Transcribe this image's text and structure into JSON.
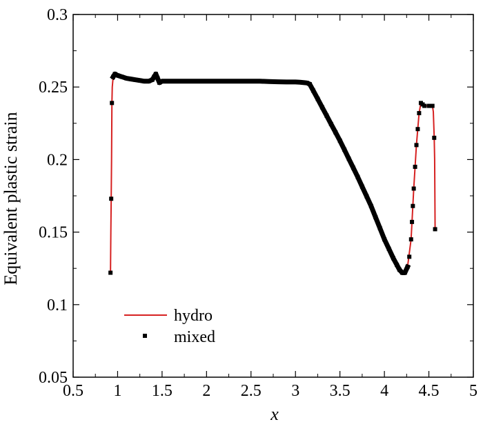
{
  "chart_data": {
    "type": "line",
    "title": "",
    "xlabel": "x",
    "ylabel": "Equivalent plastic strain",
    "xlim": [
      0.5,
      5
    ],
    "ylim": [
      0.05,
      0.3
    ],
    "x_ticks": [
      0.5,
      1,
      1.5,
      2,
      2.5,
      3,
      3.5,
      4,
      4.5,
      5
    ],
    "x_tick_labels": [
      "0.5",
      "1",
      "1.5",
      "2",
      "2.5",
      "3",
      "3.5",
      "4",
      "4.5",
      "5"
    ],
    "y_ticks": [
      0.05,
      0.1,
      0.15,
      0.2,
      0.25,
      0.3
    ],
    "y_tick_labels": [
      "0.05",
      "0.1",
      "0.15",
      "0.2",
      "0.25",
      "0.3"
    ],
    "grid": false,
    "legend": "bottom-left",
    "series": [
      {
        "name": "hydro",
        "style": "line",
        "color": "#d62020",
        "points": [
          [
            0.92,
            0.122
          ],
          [
            0.924,
            0.15
          ],
          [
            0.928,
            0.173
          ],
          [
            0.932,
            0.2
          ],
          [
            0.936,
            0.239
          ],
          [
            0.94,
            0.25
          ],
          [
            0.95,
            0.257
          ],
          [
            0.96,
            0.259
          ],
          [
            1.0,
            0.258
          ],
          [
            1.1,
            0.256
          ],
          [
            1.2,
            0.255
          ],
          [
            1.3,
            0.254
          ],
          [
            1.38,
            0.254
          ],
          [
            1.41,
            0.257
          ],
          [
            1.43,
            0.259
          ],
          [
            1.45,
            0.256
          ],
          [
            1.47,
            0.253
          ],
          [
            1.5,
            0.254
          ],
          [
            2.0,
            0.254
          ],
          [
            2.5,
            0.254
          ],
          [
            3.0,
            0.2535
          ],
          [
            3.1,
            0.253
          ],
          [
            3.16,
            0.252
          ],
          [
            3.3,
            0.236
          ],
          [
            3.5,
            0.213
          ],
          [
            3.7,
            0.188
          ],
          [
            3.85,
            0.168
          ],
          [
            4.0,
            0.145
          ],
          [
            4.1,
            0.132
          ],
          [
            4.17,
            0.124
          ],
          [
            4.2,
            0.122
          ],
          [
            4.23,
            0.122
          ],
          [
            4.26,
            0.126
          ],
          [
            4.3,
            0.145
          ],
          [
            4.33,
            0.18
          ],
          [
            4.36,
            0.21
          ],
          [
            4.39,
            0.232
          ],
          [
            4.41,
            0.239
          ],
          [
            4.45,
            0.237
          ],
          [
            4.5,
            0.237
          ],
          [
            4.54,
            0.237
          ],
          [
            4.55,
            0.233
          ],
          [
            4.56,
            0.215
          ],
          [
            4.565,
            0.2
          ],
          [
            4.57,
            0.152
          ]
        ]
      },
      {
        "name": "mixed",
        "style": "markers",
        "color": "#000000",
        "points": [
          [
            0.92,
            0.122
          ],
          [
            0.928,
            0.173
          ],
          [
            0.936,
            0.239
          ],
          [
            0.95,
            0.257
          ],
          [
            0.97,
            0.259
          ],
          [
            1.0,
            0.258
          ],
          [
            1.05,
            0.257
          ],
          [
            1.1,
            0.256
          ],
          [
            1.15,
            0.2555
          ],
          [
            1.2,
            0.255
          ],
          [
            1.25,
            0.2545
          ],
          [
            1.3,
            0.254
          ],
          [
            1.35,
            0.254
          ],
          [
            1.39,
            0.255
          ],
          [
            1.41,
            0.257
          ],
          [
            1.43,
            0.259
          ],
          [
            1.45,
            0.256
          ],
          [
            1.47,
            0.253
          ],
          [
            1.5,
            0.254
          ],
          [
            1.6,
            0.254
          ],
          [
            1.7,
            0.254
          ],
          [
            1.8,
            0.254
          ],
          [
            1.9,
            0.254
          ],
          [
            2.0,
            0.254
          ],
          [
            2.1,
            0.254
          ],
          [
            2.2,
            0.254
          ],
          [
            2.3,
            0.254
          ],
          [
            2.4,
            0.254
          ],
          [
            2.5,
            0.254
          ],
          [
            2.6,
            0.254
          ],
          [
            2.7,
            0.2538
          ],
          [
            2.8,
            0.2536
          ],
          [
            2.9,
            0.2535
          ],
          [
            3.0,
            0.2535
          ],
          [
            3.05,
            0.2533
          ],
          [
            3.1,
            0.253
          ],
          [
            3.13,
            0.2528
          ],
          [
            3.16,
            0.252
          ],
          [
            3.2,
            0.2475
          ],
          [
            3.25,
            0.2418
          ],
          [
            3.3,
            0.236
          ],
          [
            3.35,
            0.2303
          ],
          [
            3.4,
            0.2245
          ],
          [
            3.45,
            0.2188
          ],
          [
            3.5,
            0.213
          ],
          [
            3.55,
            0.2068
          ],
          [
            3.6,
            0.2005
          ],
          [
            3.65,
            0.1943
          ],
          [
            3.7,
            0.188
          ],
          [
            3.75,
            0.1813
          ],
          [
            3.8,
            0.1747
          ],
          [
            3.85,
            0.168
          ],
          [
            3.9,
            0.1603
          ],
          [
            3.95,
            0.1527
          ],
          [
            4.0,
            0.145
          ],
          [
            4.05,
            0.1385
          ],
          [
            4.1,
            0.132
          ],
          [
            4.14,
            0.1274
          ],
          [
            4.17,
            0.124
          ],
          [
            4.2,
            0.122
          ],
          [
            4.23,
            0.122
          ],
          [
            4.26,
            0.126
          ],
          [
            4.28,
            0.133
          ],
          [
            4.3,
            0.145
          ],
          [
            4.31,
            0.157
          ],
          [
            4.32,
            0.168
          ],
          [
            4.33,
            0.18
          ],
          [
            4.345,
            0.195
          ],
          [
            4.36,
            0.21
          ],
          [
            4.375,
            0.221
          ],
          [
            4.39,
            0.232
          ],
          [
            4.41,
            0.239
          ],
          [
            4.43,
            0.238
          ],
          [
            4.45,
            0.237
          ],
          [
            4.5,
            0.237
          ],
          [
            4.54,
            0.237
          ],
          [
            4.56,
            0.215
          ],
          [
            4.57,
            0.152
          ]
        ]
      }
    ]
  }
}
